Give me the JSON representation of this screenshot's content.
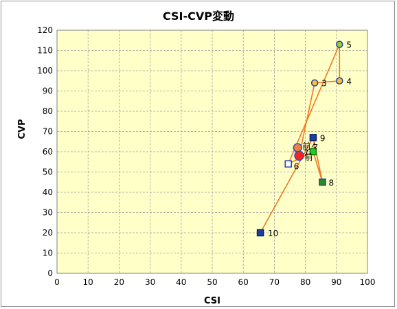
{
  "chart_data": {
    "type": "scatter",
    "title": "CSI-CVP変動",
    "xlabel": "CSI",
    "ylabel": "CVP",
    "xlim": [
      0,
      100
    ],
    "ylim": [
      0,
      120
    ],
    "xticks": [
      0,
      10,
      20,
      30,
      40,
      50,
      60,
      70,
      80,
      90,
      100
    ],
    "yticks": [
      0,
      10,
      20,
      30,
      40,
      50,
      60,
      70,
      80,
      90,
      100,
      110,
      120
    ],
    "grid": true,
    "background": "#ffffc8",
    "line_color": "#f07820",
    "points": [
      {
        "label": "前々",
        "x": 77.5,
        "y": 62,
        "marker": "circle",
        "fill": "#f08040",
        "stroke": "#2f4fbf",
        "size": 12
      },
      {
        "label": "前",
        "x": 78,
        "y": 58,
        "marker": "circle",
        "fill": "#ff2020",
        "stroke": "#2f4fbf",
        "size": 13
      },
      {
        "label": "3",
        "x": 83,
        "y": 94,
        "marker": "circle",
        "fill": "#f8c040",
        "stroke": "#2040a0",
        "size": 9
      },
      {
        "label": "4",
        "x": 91,
        "y": 95,
        "marker": "circle",
        "fill": "#f8c040",
        "stroke": "#2040a0",
        "size": 9
      },
      {
        "label": "5",
        "x": 91,
        "y": 113,
        "marker": "circle",
        "fill": "#9acd32",
        "stroke": "#2040a0",
        "size": 9
      },
      {
        "label": "6",
        "x": 74.5,
        "y": 54,
        "marker": "square",
        "fill": "#ffffff",
        "stroke": "#1f3fbf",
        "size": 9
      },
      {
        "label": "7",
        "x": 82.5,
        "y": 60,
        "marker": "square",
        "fill": "#22cc22",
        "stroke": "#117711",
        "size": 9
      },
      {
        "label": "8",
        "x": 85.5,
        "y": 45,
        "marker": "square",
        "fill": "#2a8a2a",
        "stroke": "#1f3f9f",
        "size": 9
      },
      {
        "label": "9",
        "x": 82.5,
        "y": 67,
        "marker": "square",
        "fill": "#1f3fa0",
        "stroke": "#0a1f6a",
        "size": 9
      },
      {
        "label": "10",
        "x": 65.5,
        "y": 20,
        "marker": "square",
        "fill": "#1f3fa0",
        "stroke": "#0a1f6a",
        "size": 9
      }
    ],
    "path": [
      {
        "x": 77.5,
        "y": 62
      },
      {
        "x": 78,
        "y": 58
      },
      {
        "x": 83,
        "y": 94
      },
      {
        "x": 91,
        "y": 95
      },
      {
        "x": 91,
        "y": 113
      },
      {
        "x": 74.5,
        "y": 54
      },
      {
        "x": 82.5,
        "y": 60
      },
      {
        "x": 85.5,
        "y": 45
      },
      {
        "x": 82.5,
        "y": 67
      },
      {
        "x": 65.5,
        "y": 20
      }
    ]
  }
}
